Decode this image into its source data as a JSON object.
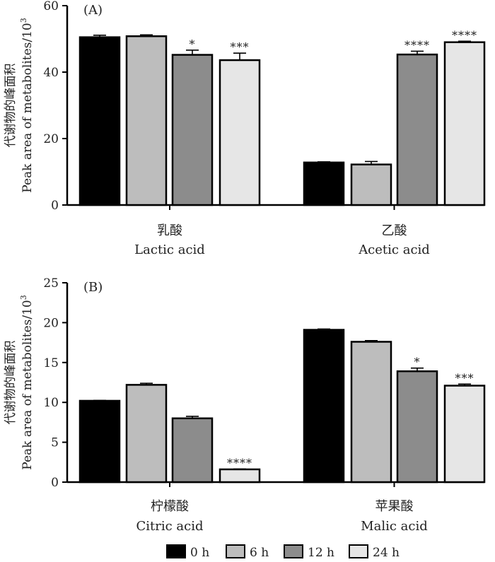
{
  "legend": [
    {
      "label": "0 h",
      "color": "#000000"
    },
    {
      "label": "6 h",
      "color": "#bdbdbd"
    },
    {
      "label": "12 h",
      "color": "#8c8c8c"
    },
    {
      "label": "24 h",
      "color": "#e6e6e6"
    }
  ],
  "chart_data": [
    {
      "type": "bar",
      "panel_label": "(A)",
      "ylabel_cn": "代谢物的峰面积",
      "ylabel_en": "Peak area of metabolites/10",
      "ylabel_exp": "3",
      "ylim": [
        0,
        60
      ],
      "yticks": [
        "0",
        "20",
        "40",
        "60"
      ],
      "categories": [
        {
          "cn": "乳酸",
          "en": "Lactic acid"
        },
        {
          "cn": "乙酸",
          "en": "Acetic acid"
        }
      ],
      "series": [
        {
          "name": "0 h",
          "values": [
            50.5,
            12.8
          ],
          "errors": [
            0.6,
            0.2
          ],
          "sig": [
            "",
            ""
          ]
        },
        {
          "name": "6 h",
          "values": [
            50.8,
            12.2
          ],
          "errors": [
            0.4,
            0.9
          ],
          "sig": [
            "",
            ""
          ]
        },
        {
          "name": "12 h",
          "values": [
            45.2,
            45.3
          ],
          "errors": [
            1.4,
            1.0
          ],
          "sig": [
            "*",
            "****"
          ]
        },
        {
          "name": "24 h",
          "values": [
            43.6,
            49.0
          ],
          "errors": [
            2.1,
            0.3
          ],
          "sig": [
            "***",
            "****"
          ]
        }
      ]
    },
    {
      "type": "bar",
      "panel_label": "(B)",
      "ylabel_cn": "代谢物的峰面积",
      "ylabel_en": "Peak area of metabolites/10",
      "ylabel_exp": "3",
      "ylim": [
        0,
        25
      ],
      "yticks": [
        "0",
        "5",
        "10",
        "15",
        "20",
        "25"
      ],
      "categories": [
        {
          "cn": "柠檬酸",
          "en": "Citric acid"
        },
        {
          "cn": "苹果酸",
          "en": "Malic acid"
        }
      ],
      "series": [
        {
          "name": "0 h",
          "values": [
            10.2,
            19.1
          ],
          "errors": [
            0.05,
            0.1
          ],
          "sig": [
            "",
            ""
          ]
        },
        {
          "name": "6 h",
          "values": [
            12.2,
            17.6
          ],
          "errors": [
            0.2,
            0.15
          ],
          "sig": [
            "",
            ""
          ]
        },
        {
          "name": "12 h",
          "values": [
            8.0,
            13.9
          ],
          "errors": [
            0.25,
            0.4
          ],
          "sig": [
            "",
            "*"
          ]
        },
        {
          "name": "24 h",
          "values": [
            1.6,
            12.1
          ],
          "errors": [
            0.05,
            0.2
          ],
          "sig": [
            "****",
            "***"
          ]
        }
      ]
    }
  ]
}
